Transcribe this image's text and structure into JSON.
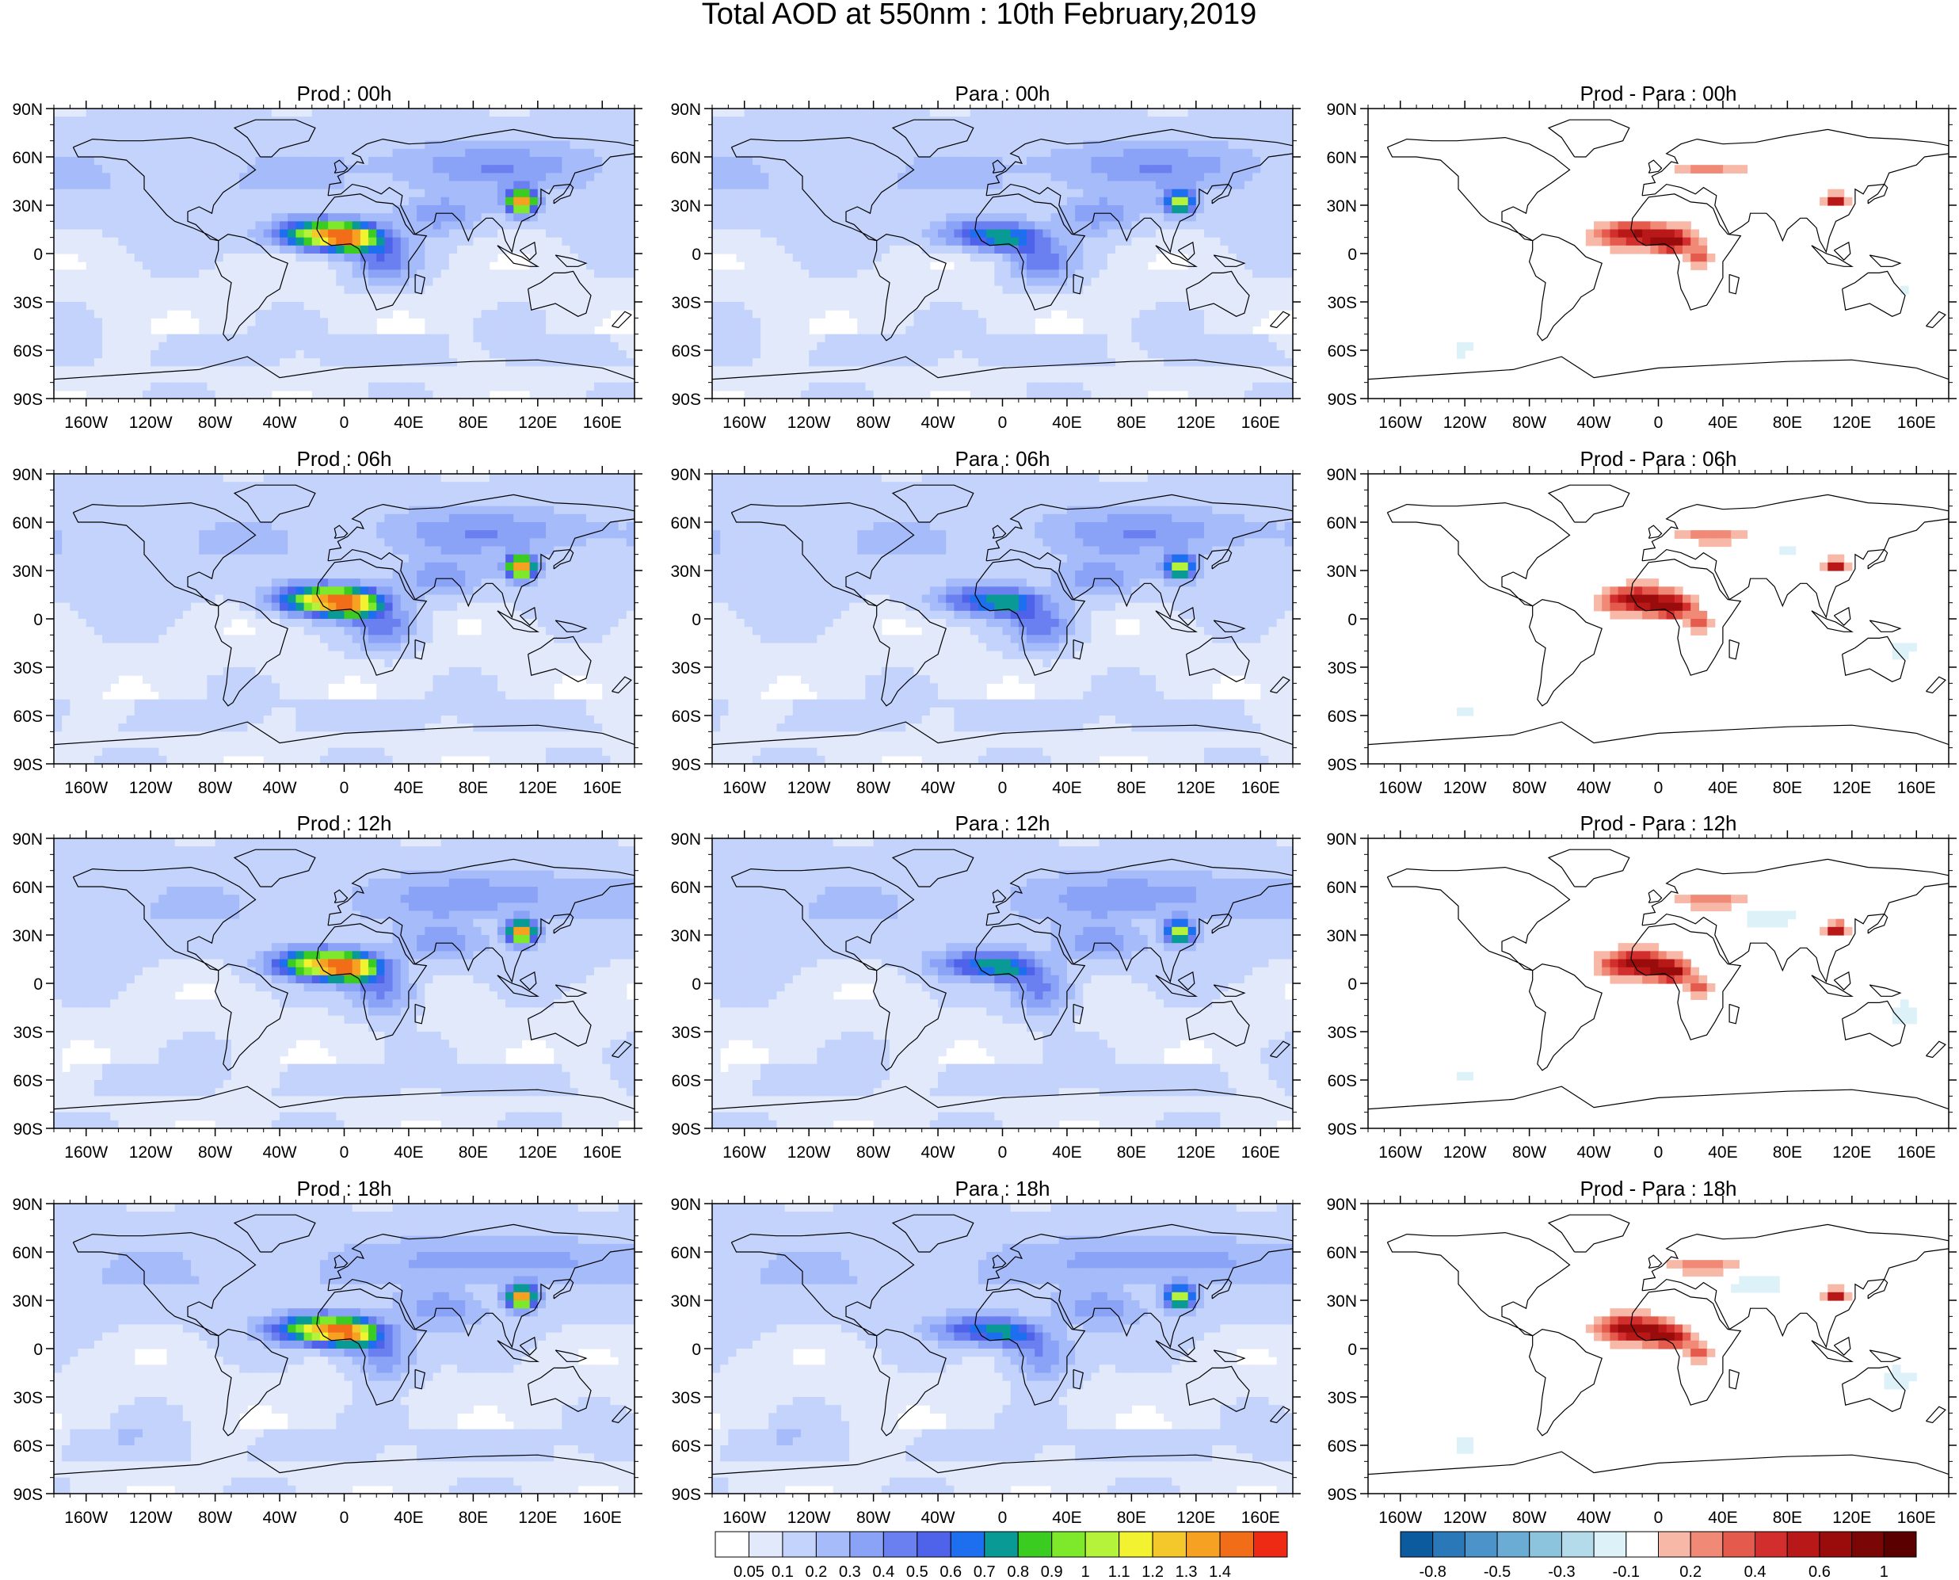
{
  "figure": {
    "title": "Total AOD at 550nm : 10th February,2019"
  },
  "columns": [
    {
      "kind": "aod",
      "titles": [
        "Prod : 00h",
        "Prod : 06h",
        "Prod : 12h",
        "Prod : 18h"
      ]
    },
    {
      "kind": "aod",
      "titles": [
        "Para : 00h",
        "Para : 06h",
        "Para : 12h",
        "Para : 18h"
      ]
    },
    {
      "kind": "diff",
      "titles": [
        "Prod - Para : 00h",
        "Prod - Para : 06h",
        "Prod - Para : 12h",
        "Prod - Para : 18h"
      ]
    }
  ],
  "axes": {
    "lat_labels": [
      "90N",
      "60N",
      "30N",
      "0",
      "30S",
      "60S",
      "90S"
    ],
    "lon_labels": [
      "160W",
      "120W",
      "80W",
      "40W",
      "0",
      "40E",
      "80E",
      "120E",
      "160E"
    ]
  },
  "colorbar_aod": {
    "colors": [
      "#ffffff",
      "#e1e9fb",
      "#c4d3fb",
      "#a6bbfa",
      "#8aa3f6",
      "#6a7ff0",
      "#4f63ea",
      "#1e6ff0",
      "#0a9a96",
      "#3bcc22",
      "#7ee82a",
      "#b5f23a",
      "#f2f230",
      "#f4c82a",
      "#f6a122",
      "#f26d18",
      "#ee2a14"
    ],
    "labels": [
      "0.05",
      "0.1",
      "0.2",
      "0.3",
      "0.4",
      "0.5",
      "0.6",
      "0.7",
      "0.8",
      "0.9",
      "1",
      "1.1",
      "1.2",
      "1.3",
      "1.4"
    ]
  },
  "colorbar_diff": {
    "colors": [
      "#0b5b9e",
      "#2a78b8",
      "#4b93c8",
      "#6aacd4",
      "#8cc4de",
      "#b3dbea",
      "#ddf1f8",
      "#ffffff",
      "#f7b8a8",
      "#f08a76",
      "#e45a4c",
      "#d22e2e",
      "#b81818",
      "#9a0c0c",
      "#7a0606",
      "#5a0000"
    ],
    "labels": [
      "-0.8",
      "-0.5",
      "-0.3",
      "-0.1",
      "0.2",
      "0.4",
      "0.6",
      "1"
    ]
  },
  "colors": {
    "land_outline": "#000000",
    "frame": "#000000"
  }
}
